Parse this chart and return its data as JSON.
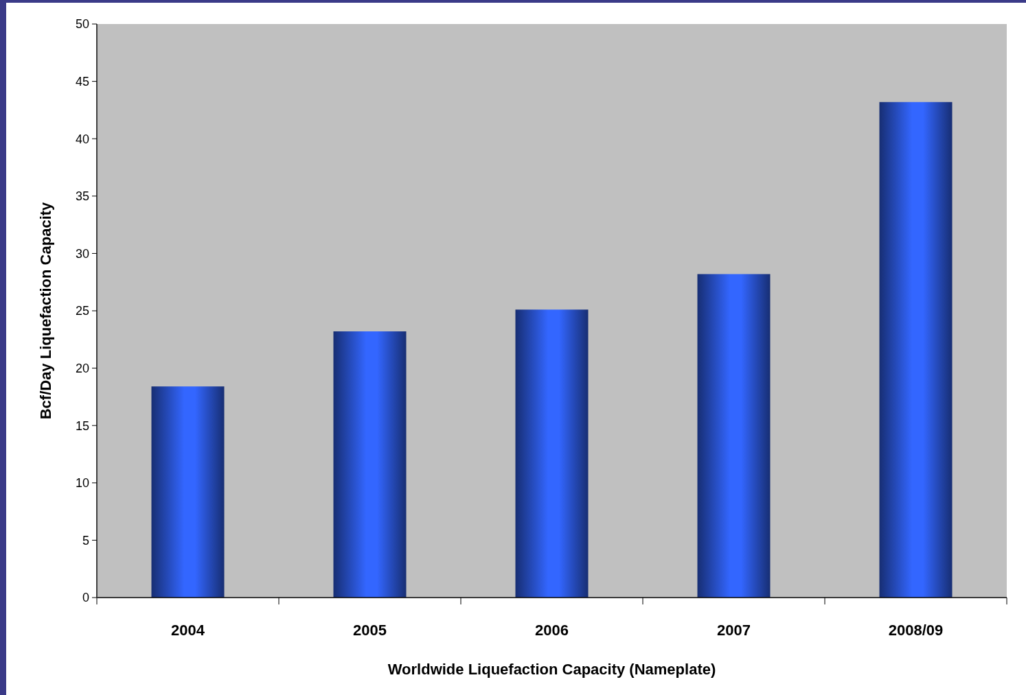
{
  "chart_data": {
    "type": "bar",
    "xlabel": "Worldwide Liquefaction Capacity (Nameplate)",
    "ylabel": "Bcf/Day Liquefaction Capacity",
    "categories": [
      "2004",
      "2005",
      "2006",
      "2007",
      "2008/09"
    ],
    "values": [
      18.4,
      23.2,
      25.1,
      28.2,
      43.2
    ],
    "color": "#3366ff",
    "ylim": [
      0,
      50
    ],
    "yticks": [
      0,
      5,
      10,
      15,
      20,
      25,
      30,
      35,
      40,
      45,
      50
    ]
  }
}
